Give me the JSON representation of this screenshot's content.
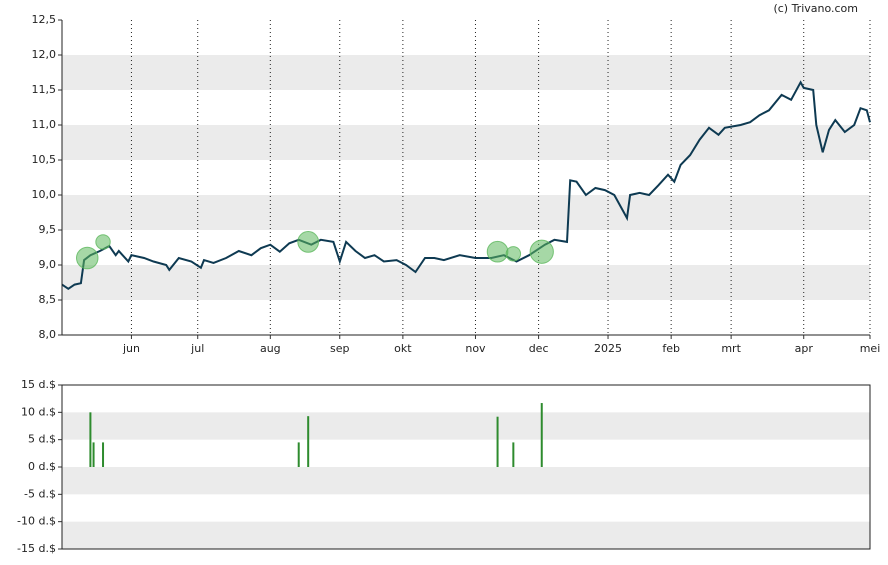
{
  "chart_data": [
    {
      "type": "line",
      "source": "(c) Trivano.com",
      "x": [
        0,
        2,
        4,
        6,
        7,
        9,
        12,
        15,
        17,
        18,
        21,
        22,
        26,
        29,
        33,
        34,
        37,
        41,
        44,
        45,
        48,
        52,
        56,
        60,
        63,
        66,
        69,
        72,
        75,
        79,
        82,
        86,
        88,
        90,
        93,
        96,
        99,
        102,
        106,
        109,
        112,
        115,
        118,
        121,
        126,
        131,
        136,
        140,
        144,
        148,
        153,
        156,
        160,
        161,
        163,
        166,
        169,
        172,
        175,
        179,
        180,
        183,
        186,
        189,
        192,
        194,
        196,
        199,
        202,
        205,
        208,
        210,
        215,
        218,
        221,
        224,
        228,
        231,
        234,
        235,
        238,
        239,
        241,
        243,
        245,
        248,
        251,
        253,
        255,
        256
      ],
      "series": [
        {
          "color": "#0e3a52",
          "values": [
            8.72,
            8.66,
            8.72,
            8.74,
            9.07,
            9.14,
            9.2,
            9.27,
            9.14,
            9.2,
            9.05,
            9.14,
            9.1,
            9.05,
            9.0,
            8.93,
            9.1,
            9.05,
            8.96,
            9.07,
            9.03,
            9.1,
            9.2,
            9.14,
            9.24,
            9.29,
            9.19,
            9.31,
            9.36,
            9.29,
            9.36,
            9.33,
            9.05,
            9.33,
            9.2,
            9.1,
            9.14,
            9.05,
            9.07,
            9.0,
            8.9,
            9.1,
            9.1,
            9.07,
            9.14,
            9.1,
            9.1,
            9.14,
            9.05,
            9.14,
            9.29,
            9.36,
            9.33,
            10.21,
            10.19,
            10.0,
            10.1,
            10.07,
            10.0,
            9.67,
            10.0,
            10.03,
            10.0,
            10.14,
            10.29,
            10.19,
            10.43,
            10.57,
            10.79,
            10.96,
            10.86,
            10.96,
            11.0,
            11.04,
            11.14,
            11.21,
            11.43,
            11.36,
            11.61,
            11.53,
            11.5,
            11.0,
            10.61,
            10.93,
            11.07,
            10.9,
            11.0,
            11.24,
            11.21,
            11.04
          ]
        }
      ],
      "bubbles": {
        "color": "#5cb85c",
        "x": [
          8,
          13,
          78,
          138,
          143,
          152
        ],
        "values": [
          9.1,
          9.33,
          9.33,
          9.19,
          9.16,
          9.19
        ],
        "sizes": [
          10,
          4.5,
          9.3,
          9.2,
          4.5,
          11.7
        ]
      },
      "xlim": [
        0,
        256
      ],
      "xticks": [
        {
          "value": 22,
          "label": "jun"
        },
        {
          "value": 43,
          "label": "jul"
        },
        {
          "value": 66,
          "label": "aug"
        },
        {
          "value": 88,
          "label": "sep"
        },
        {
          "value": 108,
          "label": "okt"
        },
        {
          "value": 131,
          "label": "nov"
        },
        {
          "value": 151,
          "label": "dec"
        },
        {
          "value": 173,
          "label": "2025"
        },
        {
          "value": 193,
          "label": "feb"
        },
        {
          "value": 212,
          "label": "mrt"
        },
        {
          "value": 235,
          "label": "apr"
        },
        {
          "value": 256,
          "label": "mei"
        }
      ],
      "ylim": [
        8.0,
        12.5
      ],
      "yticks": [
        {
          "value": 8.0,
          "label": "8,0"
        },
        {
          "value": 8.5,
          "label": "8,5"
        },
        {
          "value": 9.0,
          "label": "9,0"
        },
        {
          "value": 9.5,
          "label": "9,5"
        },
        {
          "value": 10.0,
          "label": "10,0"
        },
        {
          "value": 10.5,
          "label": "10,5"
        },
        {
          "value": 11.0,
          "label": "11,0"
        },
        {
          "value": 11.5,
          "label": "11,5"
        },
        {
          "value": 12.0,
          "label": "12,0"
        },
        {
          "value": 12.5,
          "label": "12,5"
        }
      ],
      "grid": true
    },
    {
      "type": "bar",
      "color": "#2e8b2e",
      "x": [
        9,
        10,
        13,
        75,
        78,
        138,
        143,
        152
      ],
      "values": [
        10,
        4.5,
        4.5,
        4.5,
        9.3,
        9.2,
        4.5,
        11.7
      ],
      "xlim": [
        0,
        256
      ],
      "ylim": [
        -15,
        15
      ],
      "yticks": [
        {
          "value": -15,
          "label": "-15 d.$"
        },
        {
          "value": -10,
          "label": "-10 d.$"
        },
        {
          "value": -5,
          "label": "-5 d.$"
        },
        {
          "value": 0,
          "label": "0 d.$"
        },
        {
          "value": 5,
          "label": "5 d.$"
        },
        {
          "value": 10,
          "label": "10 d.$"
        },
        {
          "value": 15,
          "label": "15 d.$"
        }
      ]
    }
  ]
}
